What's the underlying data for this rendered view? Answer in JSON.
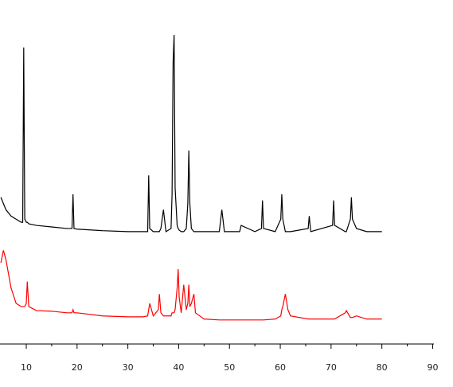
{
  "chart_data": {
    "type": "line",
    "x": [
      5,
      5.5,
      6,
      7,
      8,
      9,
      9.3,
      9.5,
      9.7,
      10,
      10.2,
      10.5,
      12,
      15,
      18,
      19,
      19.2,
      19.4,
      20,
      25,
      30,
      33,
      33.9,
      34.1,
      34.3,
      35,
      36,
      36.2,
      36.5,
      37,
      37.5,
      38.5,
      38.7,
      38.9,
      39.1,
      39.3,
      39.7,
      39.9,
      40.1,
      40.5,
      41,
      41.5,
      41.8,
      42,
      42.2,
      42.5,
      43,
      43.3,
      45,
      48,
      48.5,
      49,
      52,
      52.3,
      55,
      56.3,
      56.5,
      56.7,
      59,
      60.1,
      60.3,
      60.5,
      61,
      61.5,
      62,
      65.5,
      65.7,
      66,
      70.3,
      70.5,
      70.7,
      72.8,
      73,
      73.8,
      74,
      74.2,
      75,
      77,
      80
    ],
    "series": [
      {
        "color": "#000000",
        "values": [
          47,
          45,
          43,
          41,
          40,
          39,
          39,
          95,
          40,
          39,
          39,
          38.5,
          38,
          37.5,
          37,
          37,
          48,
          37,
          36.8,
          36.3,
          36,
          36,
          36,
          54,
          37,
          36,
          36,
          36,
          37,
          43,
          36,
          37,
          48,
          90,
          99,
          50,
          38,
          37,
          36.5,
          36,
          36,
          37,
          45,
          62,
          45,
          37,
          36,
          36,
          36,
          36,
          43,
          36,
          36,
          38,
          36,
          37,
          46,
          37,
          36,
          40,
          48,
          40,
          36,
          36,
          36,
          37,
          41,
          36,
          38,
          46,
          38,
          36,
          36,
          40,
          47,
          40,
          37,
          36,
          36
        ]
      },
      {
        "color": "#ff0000",
        "values": [
          26,
          30,
          27,
          18,
          13,
          12,
          12,
          12,
          12,
          13,
          20,
          12,
          10.7,
          10.5,
          10,
          10,
          11,
          10,
          10,
          9,
          8.7,
          8.7,
          9,
          11,
          13,
          9,
          11,
          16,
          10,
          9,
          9,
          9,
          10,
          10,
          10,
          11,
          18,
          24,
          15,
          10,
          19,
          11,
          13,
          19,
          12,
          13,
          16,
          10,
          8,
          7.7,
          7.7,
          7.7,
          7.7,
          7.7,
          7.7,
          7.7,
          7.7,
          7.7,
          8,
          9,
          11,
          12,
          16,
          11,
          9,
          8,
          8,
          8,
          8,
          8,
          8,
          10,
          10.7,
          8.5,
          8.5,
          8.5,
          9,
          8,
          8
        ]
      }
    ],
    "xlim": [
      4.83,
      94.0
    ],
    "xticks": [
      10,
      20,
      30,
      40,
      50,
      60,
      70,
      80,
      90
    ],
    "ylim": [
      0,
      100
    ]
  }
}
